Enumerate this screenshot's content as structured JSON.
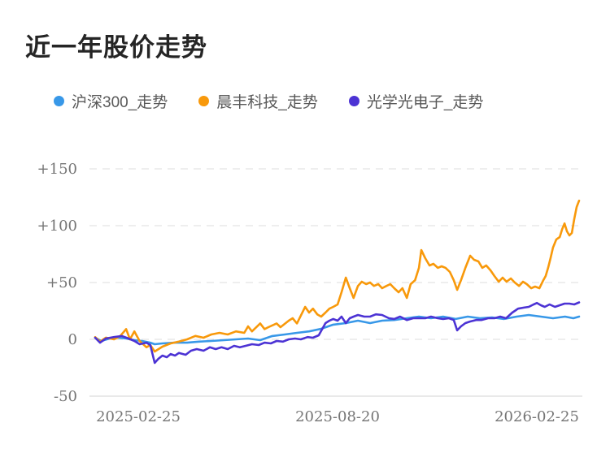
{
  "chart_data": {
    "type": "line",
    "title": "近一年股价走势",
    "legend_position": "top-left",
    "grid": "horizontal dashed",
    "unit": "percent change",
    "x_axis": {
      "labels": [
        "2025-02-25",
        "2025-08-20",
        "2026-02-25"
      ]
    },
    "y_axis": {
      "range": [
        -50,
        150
      ],
      "ticks": [
        {
          "label": "+150",
          "value": 150
        },
        {
          "label": "+100",
          "value": 100
        },
        {
          "label": "+50",
          "value": 50
        },
        {
          "label": "0",
          "value": 0
        },
        {
          "label": "-50",
          "value": -50
        }
      ]
    },
    "series": [
      {
        "name": "沪深300_走势",
        "color": "#3898e8",
        "points": [
          [
            0,
            1.4
          ],
          [
            1.3,
            -1.4
          ],
          [
            3,
            0.7
          ],
          [
            4.7,
            1.4
          ],
          [
            6.4,
            0.7
          ],
          [
            8.1,
            -0.7
          ],
          [
            9.7,
            -1.4
          ],
          [
            11.4,
            -2.9
          ],
          [
            12.3,
            -4.3
          ],
          [
            13.9,
            -3.6
          ],
          [
            16.5,
            -2.9
          ],
          [
            19,
            -2.9
          ],
          [
            21.5,
            -2
          ],
          [
            24,
            -1.4
          ],
          [
            26.6,
            -0.7
          ],
          [
            29.1,
            0
          ],
          [
            31.6,
            0.7
          ],
          [
            34.1,
            -0.7
          ],
          [
            36.6,
            2.9
          ],
          [
            39.2,
            4.3
          ],
          [
            41.7,
            5.7
          ],
          [
            44.2,
            7
          ],
          [
            46.7,
            9.3
          ],
          [
            49.2,
            12.9
          ],
          [
            51.8,
            14.3
          ],
          [
            54.3,
            16.4
          ],
          [
            56.8,
            14.3
          ],
          [
            59.3,
            16.4
          ],
          [
            61.8,
            17
          ],
          [
            64.4,
            18.6
          ],
          [
            66.9,
            20
          ],
          [
            69.4,
            18.6
          ],
          [
            71.9,
            20
          ],
          [
            74.5,
            17.9
          ],
          [
            77,
            20
          ],
          [
            79.5,
            18.6
          ],
          [
            82,
            19.3
          ],
          [
            84.5,
            17.9
          ],
          [
            87.1,
            20
          ],
          [
            89.6,
            21.4
          ],
          [
            92.1,
            20
          ],
          [
            94.6,
            18.6
          ],
          [
            97.1,
            20
          ],
          [
            98.8,
            18.6
          ],
          [
            100,
            20
          ]
        ]
      },
      {
        "name": "晨丰科技_走势",
        "color": "#f8990b",
        "points": [
          [
            0,
            2
          ],
          [
            1,
            -2
          ],
          [
            2.2,
            1.5
          ],
          [
            3.9,
            0
          ],
          [
            5.2,
            3
          ],
          [
            6.4,
            9
          ],
          [
            7.2,
            0
          ],
          [
            8.1,
            7
          ],
          [
            9.2,
            -1.5
          ],
          [
            10.6,
            -7
          ],
          [
            11.4,
            -5
          ],
          [
            12.3,
            -10.7
          ],
          [
            13.9,
            -6.4
          ],
          [
            15.6,
            -3.6
          ],
          [
            17.3,
            -2
          ],
          [
            19,
            0
          ],
          [
            20.7,
            3
          ],
          [
            22.4,
            1.4
          ],
          [
            24,
            4.3
          ],
          [
            25.7,
            5.7
          ],
          [
            27.4,
            4.3
          ],
          [
            29.1,
            7
          ],
          [
            30.8,
            5.7
          ],
          [
            31.6,
            11.4
          ],
          [
            32.4,
            7
          ],
          [
            34.1,
            14
          ],
          [
            35,
            9
          ],
          [
            35.8,
            10.7
          ],
          [
            37.5,
            14
          ],
          [
            38.3,
            10.7
          ],
          [
            40,
            16.4
          ],
          [
            40.8,
            18.6
          ],
          [
            41.7,
            14
          ],
          [
            43.4,
            28.6
          ],
          [
            44.2,
            23.6
          ],
          [
            45,
            27
          ],
          [
            45.9,
            22
          ],
          [
            46.7,
            20
          ],
          [
            47.6,
            23.6
          ],
          [
            48.4,
            27
          ],
          [
            49.2,
            28.6
          ],
          [
            50.1,
            30.7
          ],
          [
            50.9,
            41.4
          ],
          [
            51.8,
            54.3
          ],
          [
            52.6,
            45
          ],
          [
            53.4,
            36.4
          ],
          [
            54.3,
            47
          ],
          [
            55.1,
            50.7
          ],
          [
            56,
            48.6
          ],
          [
            56.8,
            50
          ],
          [
            57.6,
            47
          ],
          [
            58.5,
            48.6
          ],
          [
            59.3,
            45
          ],
          [
            60.2,
            47
          ],
          [
            61,
            48.6
          ],
          [
            61.8,
            45
          ],
          [
            62.7,
            41.4
          ],
          [
            63.5,
            45
          ],
          [
            64.4,
            36.4
          ],
          [
            65.2,
            48.6
          ],
          [
            66.1,
            52
          ],
          [
            66.9,
            62.9
          ],
          [
            67.4,
            78.6
          ],
          [
            68.2,
            71.4
          ],
          [
            69.1,
            65
          ],
          [
            69.9,
            66.4
          ],
          [
            70.8,
            62.9
          ],
          [
            71.6,
            64.3
          ],
          [
            72.4,
            62.9
          ],
          [
            73.3,
            59.3
          ],
          [
            74.1,
            52
          ],
          [
            74.8,
            43.6
          ],
          [
            75.6,
            52
          ],
          [
            76.5,
            62.9
          ],
          [
            77.5,
            73.6
          ],
          [
            78.3,
            70
          ],
          [
            79.2,
            68.6
          ],
          [
            80,
            62.9
          ],
          [
            80.8,
            65
          ],
          [
            81.7,
            60.7
          ],
          [
            82.5,
            55.7
          ],
          [
            83.4,
            50.7
          ],
          [
            84.2,
            54.3
          ],
          [
            85,
            50.7
          ],
          [
            85.9,
            53.6
          ],
          [
            86.7,
            50
          ],
          [
            87.6,
            47
          ],
          [
            88.4,
            50.7
          ],
          [
            89.2,
            48.6
          ],
          [
            90.1,
            45
          ],
          [
            90.9,
            46.4
          ],
          [
            91.8,
            45
          ],
          [
            92.6,
            52
          ],
          [
            93.1,
            55.7
          ],
          [
            93.6,
            62.9
          ],
          [
            94.1,
            71.4
          ],
          [
            94.6,
            80.7
          ],
          [
            95.3,
            87.9
          ],
          [
            96,
            90
          ],
          [
            96.5,
            97
          ],
          [
            97,
            102
          ],
          [
            97.5,
            95
          ],
          [
            98,
            91.4
          ],
          [
            98.5,
            93.6
          ],
          [
            99,
            105.7
          ],
          [
            99.5,
            116.4
          ],
          [
            100,
            122
          ]
        ]
      },
      {
        "name": "光学光电子_走势",
        "color": "#4c33d4",
        "points": [
          [
            0,
            1.4
          ],
          [
            1,
            -2.9
          ],
          [
            2.2,
            0.7
          ],
          [
            3.9,
            2
          ],
          [
            5.5,
            2.9
          ],
          [
            6.9,
            0.7
          ],
          [
            8.1,
            -1.4
          ],
          [
            9.2,
            -4.3
          ],
          [
            10.6,
            -2.9
          ],
          [
            11.4,
            -5
          ],
          [
            12.3,
            -20.7
          ],
          [
            13.1,
            -17
          ],
          [
            13.9,
            -14.3
          ],
          [
            14.8,
            -15.7
          ],
          [
            15.6,
            -12.9
          ],
          [
            16.5,
            -14.3
          ],
          [
            17.3,
            -12
          ],
          [
            18.7,
            -13.6
          ],
          [
            19.8,
            -10
          ],
          [
            21,
            -8.6
          ],
          [
            22.4,
            -10
          ],
          [
            23.7,
            -7
          ],
          [
            24.9,
            -8.6
          ],
          [
            26.1,
            -7
          ],
          [
            27.4,
            -8.6
          ],
          [
            28.7,
            -5.7
          ],
          [
            29.9,
            -7
          ],
          [
            31.1,
            -5.7
          ],
          [
            32.4,
            -4.3
          ],
          [
            33.8,
            -5
          ],
          [
            35,
            -2.9
          ],
          [
            36.3,
            -3.6
          ],
          [
            37.5,
            -1.4
          ],
          [
            38.8,
            -2
          ],
          [
            40,
            0
          ],
          [
            41.3,
            0.7
          ],
          [
            42.5,
            0
          ],
          [
            43.9,
            2
          ],
          [
            45,
            1.4
          ],
          [
            46.2,
            3.6
          ],
          [
            47.6,
            14.3
          ],
          [
            48.4,
            16.4
          ],
          [
            49.2,
            17.9
          ],
          [
            50.1,
            16.4
          ],
          [
            50.9,
            20
          ],
          [
            51.8,
            14.3
          ],
          [
            52.6,
            18.6
          ],
          [
            53.4,
            20
          ],
          [
            54.3,
            21.4
          ],
          [
            55.6,
            20
          ],
          [
            56.8,
            20
          ],
          [
            58,
            22
          ],
          [
            59.3,
            21.4
          ],
          [
            60.7,
            18.6
          ],
          [
            61.8,
            17.9
          ],
          [
            63,
            20
          ],
          [
            64.4,
            17
          ],
          [
            65.7,
            18.6
          ],
          [
            66.9,
            18.6
          ],
          [
            68.2,
            18.6
          ],
          [
            69.4,
            20
          ],
          [
            70.8,
            18.6
          ],
          [
            71.9,
            17.9
          ],
          [
            73.1,
            18.6
          ],
          [
            74.1,
            17
          ],
          [
            74.8,
            7.9
          ],
          [
            75.6,
            11.4
          ],
          [
            76.5,
            14.3
          ],
          [
            77.5,
            15.7
          ],
          [
            78.7,
            17
          ],
          [
            79.8,
            17
          ],
          [
            81.2,
            18.6
          ],
          [
            82.5,
            18.6
          ],
          [
            83.7,
            20
          ],
          [
            84.9,
            18.6
          ],
          [
            86.2,
            23.6
          ],
          [
            87.4,
            27
          ],
          [
            88.6,
            27.9
          ],
          [
            89.6,
            28.6
          ],
          [
            90.6,
            30.7
          ],
          [
            91.3,
            32
          ],
          [
            92.1,
            30
          ],
          [
            92.9,
            28.6
          ],
          [
            93.9,
            30.7
          ],
          [
            95,
            28.6
          ],
          [
            96,
            30
          ],
          [
            97,
            31.4
          ],
          [
            98,
            31.4
          ],
          [
            99,
            30.7
          ],
          [
            100,
            32.5
          ]
        ]
      }
    ]
  }
}
